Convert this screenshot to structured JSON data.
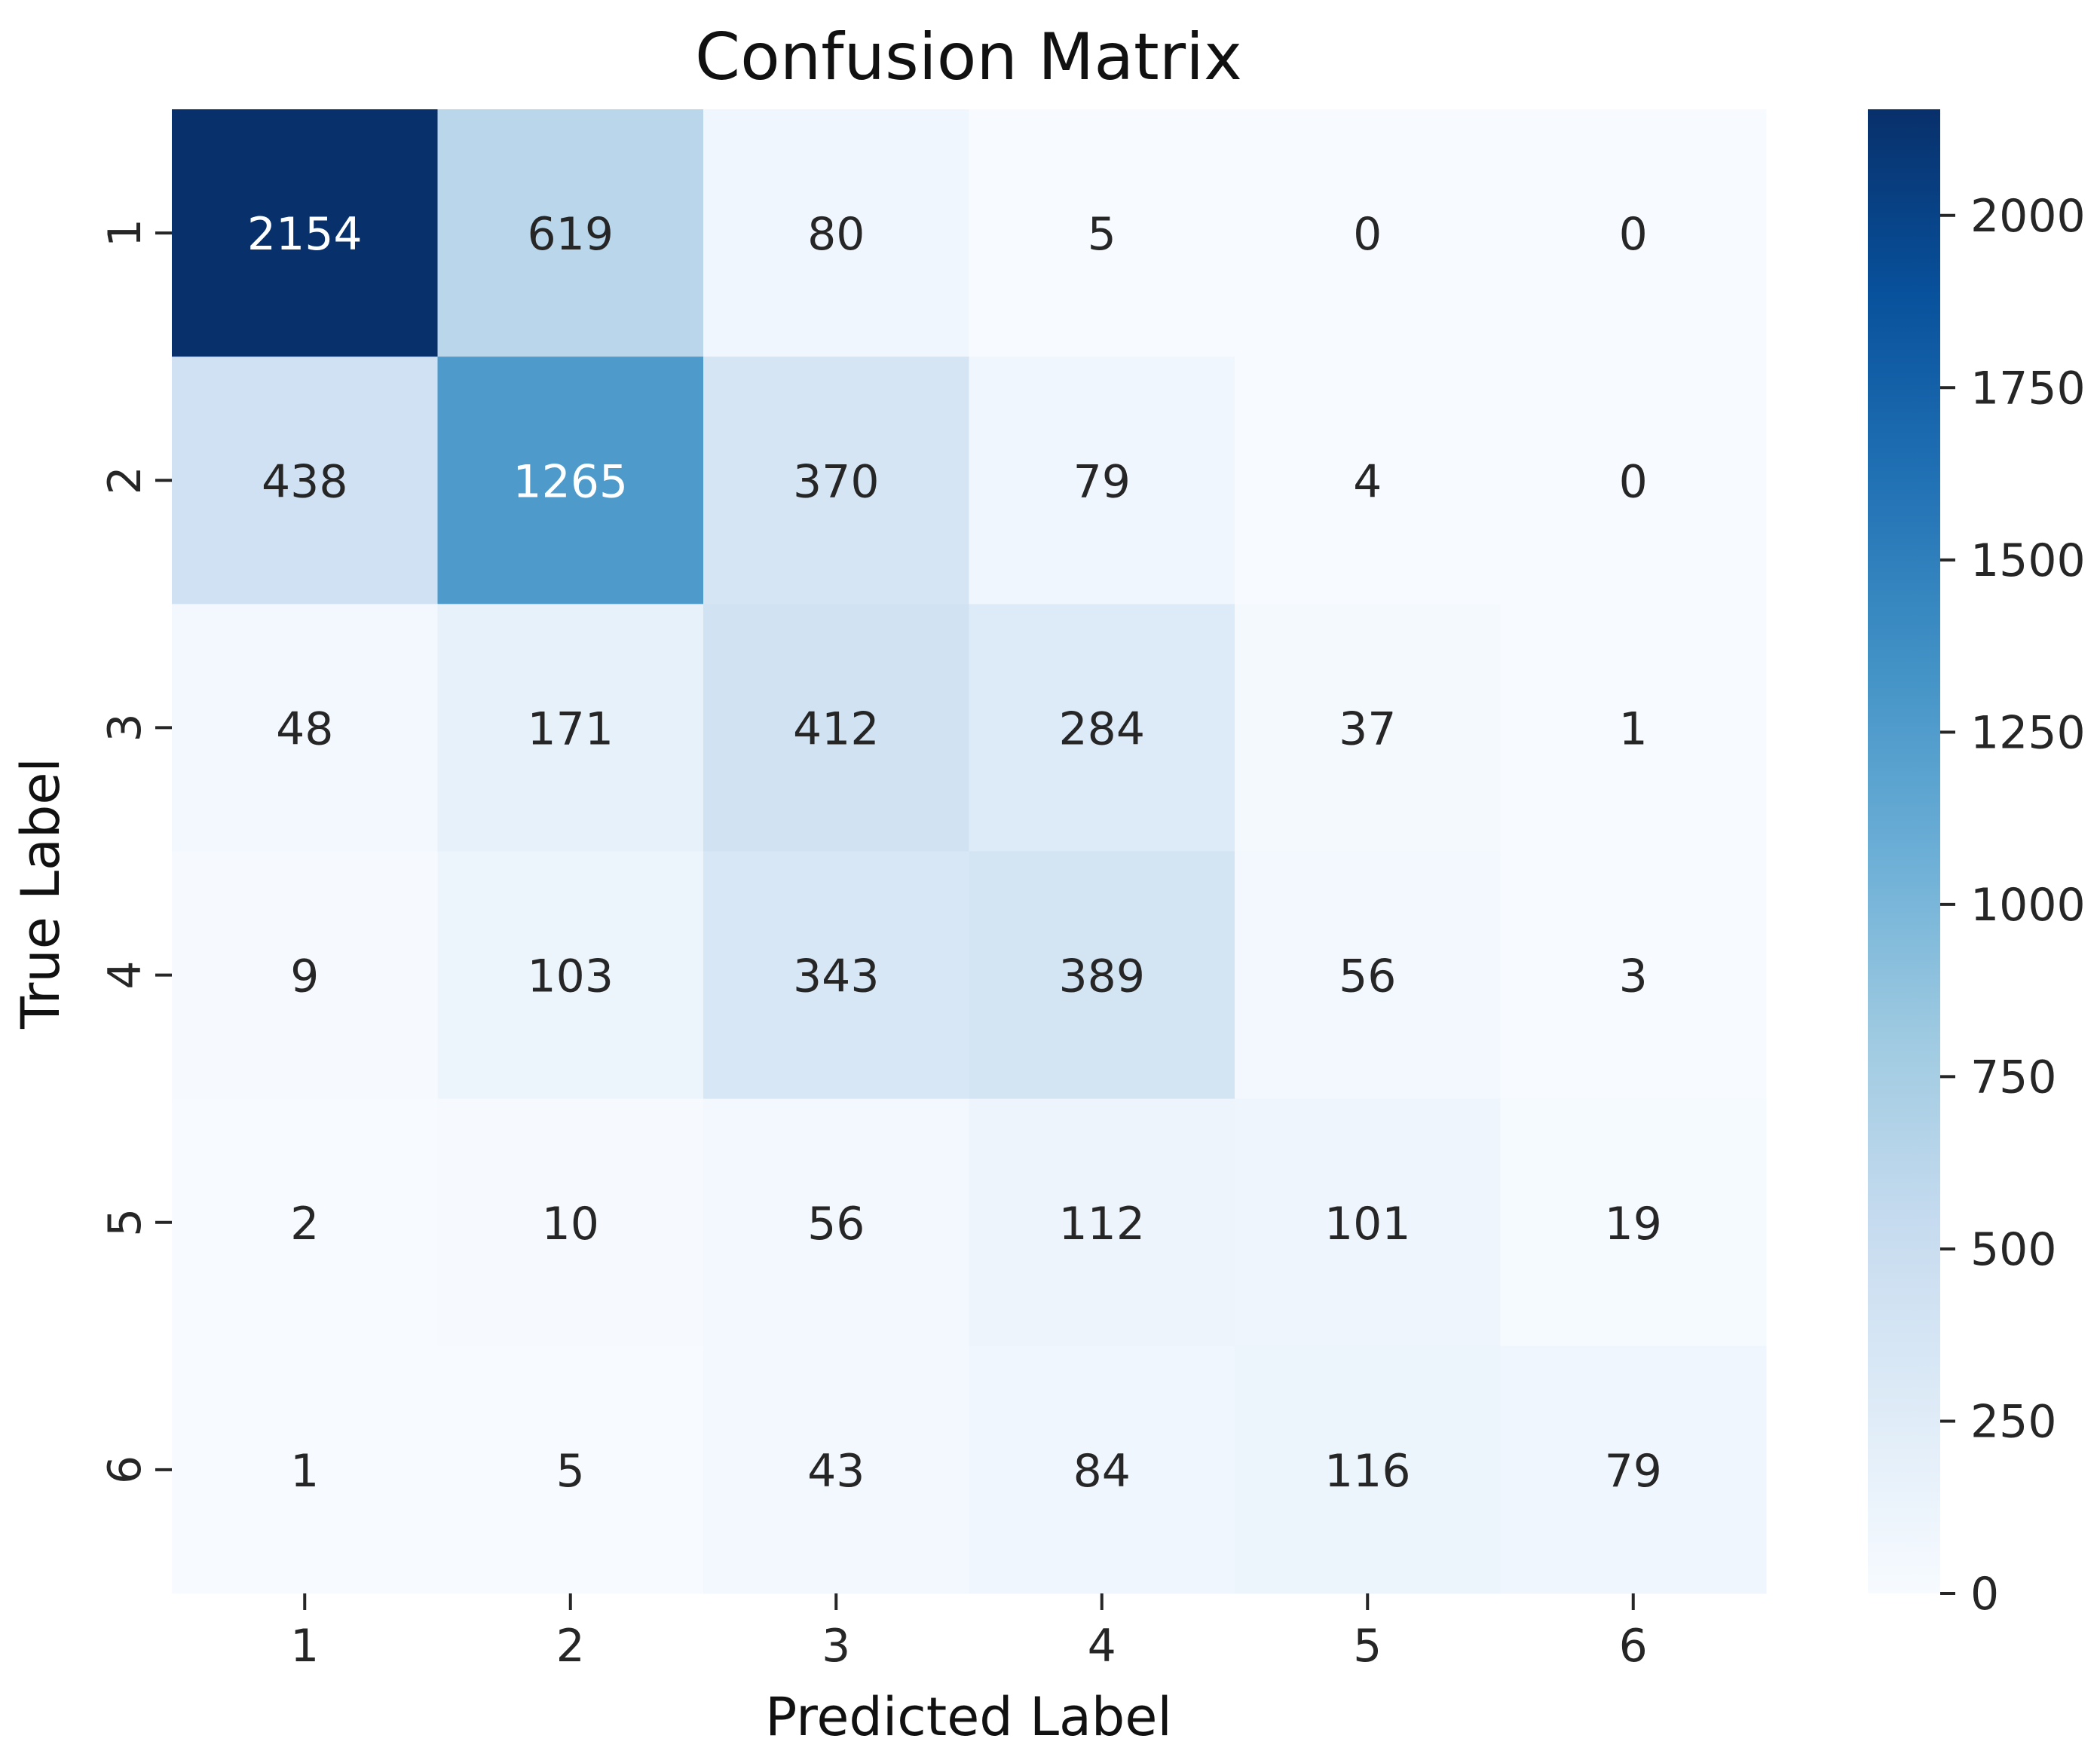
{
  "chart_data": {
    "type": "heatmap",
    "title": "Confusion Matrix",
    "xlabel": "Predicted Label",
    "ylabel": "True Label",
    "x_categories": [
      "1",
      "2",
      "3",
      "4",
      "5",
      "6"
    ],
    "y_categories": [
      "1",
      "2",
      "3",
      "4",
      "5",
      "6"
    ],
    "matrix": [
      [
        2154,
        619,
        80,
        5,
        0,
        0
      ],
      [
        438,
        1265,
        370,
        79,
        4,
        0
      ],
      [
        48,
        171,
        412,
        284,
        37,
        1
      ],
      [
        9,
        103,
        343,
        389,
        56,
        3
      ],
      [
        2,
        10,
        56,
        112,
        101,
        19
      ],
      [
        1,
        5,
        43,
        84,
        116,
        79
      ]
    ],
    "colormap": "Blues",
    "colorbar": {
      "min": 0,
      "max": 2154,
      "ticks": [
        0,
        250,
        500,
        750,
        1000,
        1250,
        1500,
        1750,
        2000
      ]
    },
    "grid": false
  }
}
